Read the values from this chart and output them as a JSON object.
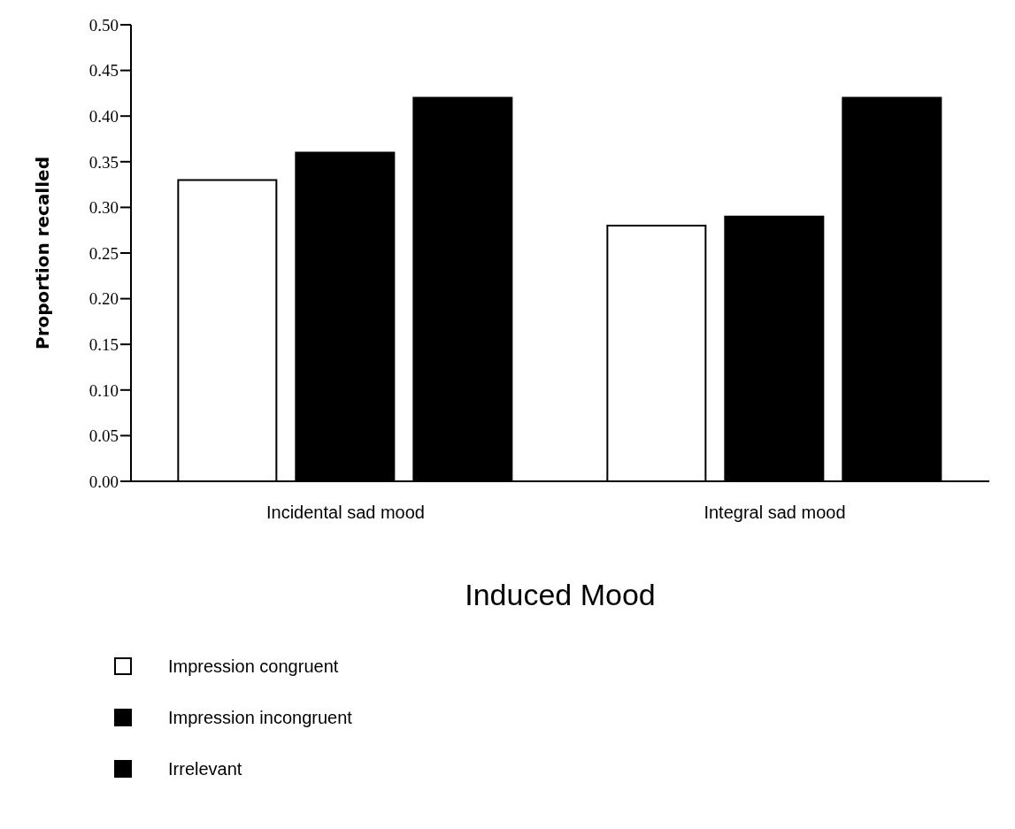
{
  "chart_data": {
    "type": "bar",
    "xlabel": "Induced Mood",
    "ylabel": "Proportion recalled",
    "categories": [
      "Incidental sad mood",
      "Integral sad mood"
    ],
    "series": [
      {
        "name": "Impression congruent",
        "color": "#ffffff",
        "values": [
          0.33,
          0.28
        ]
      },
      {
        "name": "Impression incongruent",
        "color": "#000000",
        "values": [
          0.36,
          0.29
        ]
      },
      {
        "name": "Irrelevant",
        "color": "#000000",
        "values": [
          0.42,
          0.42
        ]
      }
    ],
    "ylim": [
      0,
      0.5
    ],
    "yticks": [
      {
        "value": 0,
        "label": "0.00"
      },
      {
        "value": 0.05,
        "label": "0.05"
      },
      {
        "value": 0.1,
        "label": "0.10"
      },
      {
        "value": 0.15,
        "label": "0.15"
      },
      {
        "value": 0.2,
        "label": "0.20"
      },
      {
        "value": 0.25,
        "label": "0.25"
      },
      {
        "value": 0.3,
        "label": "0.30"
      },
      {
        "value": 0.35,
        "label": "0.35"
      },
      {
        "value": 0.4,
        "label": "0.40"
      },
      {
        "value": 0.45,
        "label": "0.45"
      },
      {
        "value": 0.5,
        "label": "0.50"
      }
    ],
    "grid": false,
    "legend": "bottom left"
  }
}
